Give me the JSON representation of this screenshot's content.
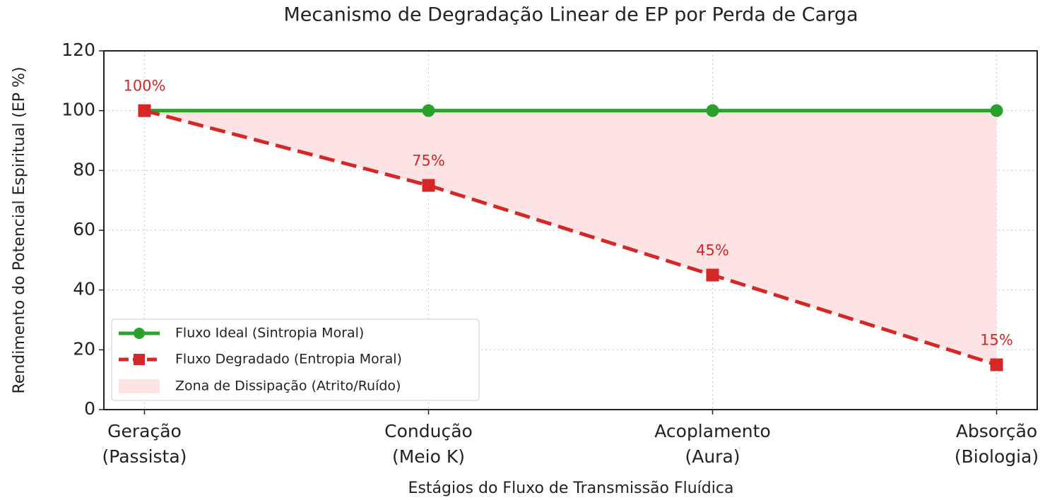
{
  "chart_data": {
    "type": "line",
    "title": "Mecanismo de Degradação Linear de EP por Perda de Carga",
    "xlabel": "Estágios do Fluxo de Transmissão Fluídica",
    "ylabel": "Rendimento do Potencial Espiritual (EP %)",
    "categories": [
      [
        "Geração",
        "(Passista)"
      ],
      [
        "Condução",
        "(Meio K)"
      ],
      [
        "Acoplamento",
        "(Aura)"
      ],
      [
        "Absorção",
        "(Biologia)"
      ]
    ],
    "series": [
      {
        "name": "Fluxo Ideal (Sintropia Moral)",
        "color": "#2ca02c",
        "marker": "circle",
        "dashed": false,
        "values": [
          100,
          100,
          100,
          100
        ]
      },
      {
        "name": "Fluxo Degradado (Entropia Moral)",
        "color": "#d62728",
        "marker": "square",
        "dashed": true,
        "values": [
          100,
          75,
          45,
          15
        ],
        "value_labels": [
          "100%",
          "75%",
          "45%",
          "15%"
        ]
      }
    ],
    "fill_between": {
      "name": "Zona de Dissipação (Atrito/Ruído)",
      "color": "#fde3e3"
    },
    "ylim": [
      0,
      120
    ],
    "yticks": [
      0,
      20,
      40,
      60,
      80,
      100,
      120
    ],
    "grid": true,
    "legend": "lower left"
  }
}
